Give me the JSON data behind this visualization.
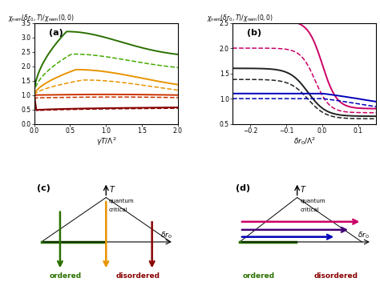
{
  "panel_a": {
    "xlabel": "$\\gamma T/\\Lambda^2$",
    "ylabel_top": "$\\chi_{\\rm nem}(\\delta r_0, T)/\\chi_{\\rm nem}(0,0)$",
    "xlim": [
      0,
      2
    ],
    "ylim": [
      0,
      3.5
    ],
    "yticks": [
      0,
      0.5,
      1.0,
      1.5,
      2.0,
      2.5,
      3.0,
      3.5
    ],
    "xticks": [
      0,
      0.5,
      1.0,
      1.5,
      2.0
    ],
    "label": "(a)"
  },
  "panel_b": {
    "xlabel": "$\\delta r_0/\\Lambda^2$",
    "ylabel_top": "$\\chi_{\\rm nem}(\\delta r_0, T)/\\chi_{\\rm nem}(0,0)$",
    "xlim": [
      -0.25,
      0.15
    ],
    "ylim": [
      0.5,
      2.5
    ],
    "yticks": [
      0.5,
      1.0,
      1.5,
      2.0,
      2.5
    ],
    "xticks": [
      -0.2,
      -0.1,
      0.0,
      0.1
    ],
    "label": "(b)"
  },
  "green_dark": "#2a7000",
  "green_light": "#44aa00",
  "orange": "#e89400",
  "red_mid": "#cc3300",
  "red_dark": "#880000",
  "pink": "#cc0066",
  "black_col": "#222222",
  "blue": "#0000bb",
  "purple": "#440077",
  "lw_solid": 1.4,
  "lw_dashed": 1.1
}
